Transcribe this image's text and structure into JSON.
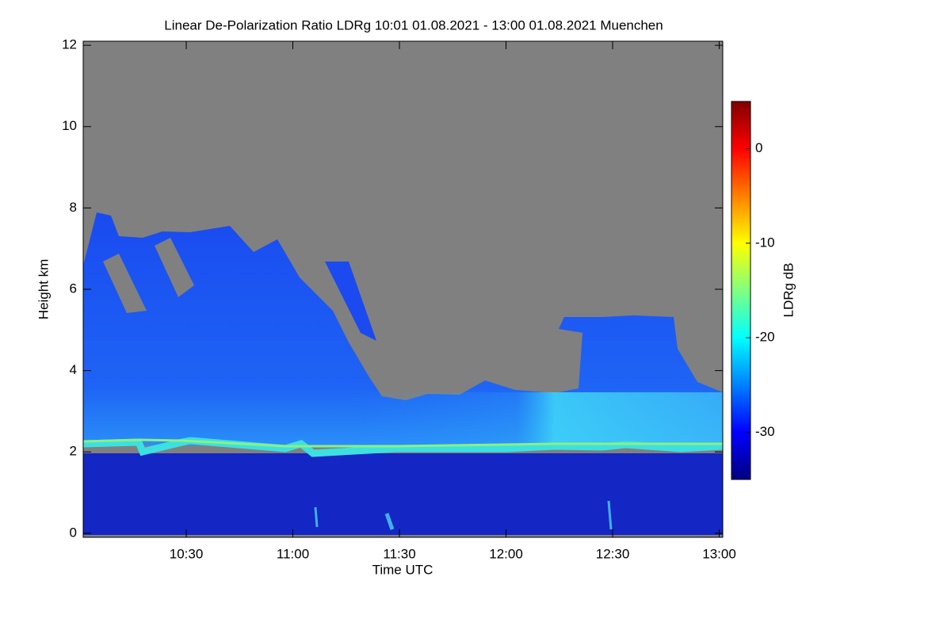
{
  "chart_data": {
    "type": "heatmap",
    "title": "Linear De-Polarization Ratio LDRg   10:01 01.08.2021 - 13:00 01.08.2021 Muenchen",
    "xlabel": "Time UTC",
    "ylabel": "Height km",
    "xlim": [
      601,
      781
    ],
    "xticks": [
      {
        "value": 630,
        "label": "10:30"
      },
      {
        "value": 660,
        "label": "11:00"
      },
      {
        "value": 690,
        "label": "11:30"
      },
      {
        "value": 720,
        "label": "12:00"
      },
      {
        "value": 750,
        "label": "12:30"
      },
      {
        "value": 780,
        "label": "13:00"
      }
    ],
    "ylim": [
      -0.1,
      12.1
    ],
    "yticks": [
      0,
      2,
      4,
      6,
      8,
      10,
      12
    ],
    "colorbar": {
      "label": "LDRg dB",
      "colormap": "jet",
      "clim": [
        -35,
        5
      ],
      "ticks": [
        0,
        -10,
        -20,
        -30
      ]
    }
  }
}
